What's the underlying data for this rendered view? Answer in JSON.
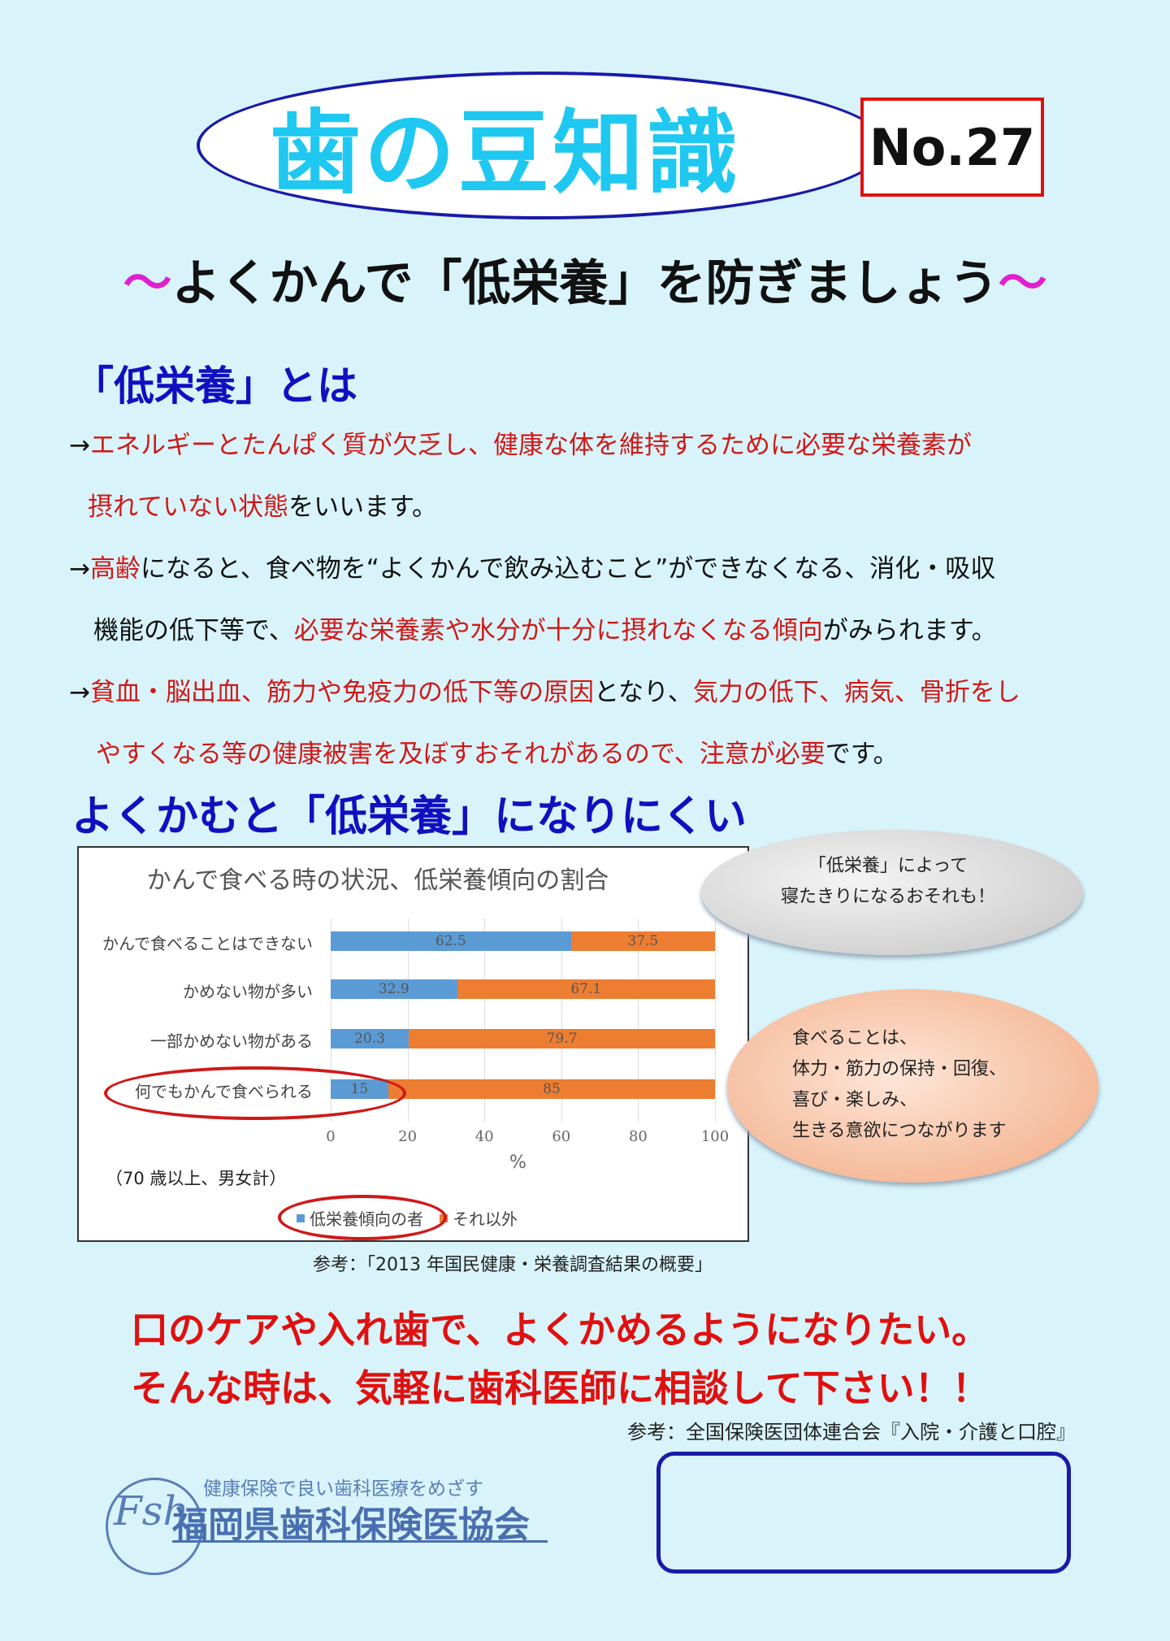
{
  "header": {
    "title": "歯の豆知識",
    "issue": "No.27"
  },
  "subtitle": {
    "tilde_left": "〜",
    "text": "よくかんで「低栄養」を防ぎましょう",
    "tilde_right": "〜"
  },
  "section1": {
    "title": "「低栄養」とは",
    "lines": [
      [
        {
          "t": "→",
          "r": false
        },
        {
          "t": "エネルギーとたんぱく質が欠乏し、健康な体を維持するために必要な栄養素が",
          "r": true
        }
      ],
      [
        {
          "t": "摂れていない状態",
          "r": true
        },
        {
          "t": "をいいます。",
          "r": false
        }
      ],
      [
        {
          "t": "→",
          "r": false
        },
        {
          "t": "高齢",
          "r": true
        },
        {
          "t": "になると、食べ物を“よくかんで飲み込むこと”ができなくなる、消化・吸収",
          "r": false
        }
      ],
      [
        {
          "t": "機能の低下等で、",
          "r": false
        },
        {
          "t": "必要な栄養素や水分が十分に摂れなくなる傾向",
          "r": true
        },
        {
          "t": "がみられます。",
          "r": false
        }
      ],
      [
        {
          "t": "→",
          "r": false
        },
        {
          "t": "貧血・脳出血、筋力や免疫力の低下等の原因",
          "r": true
        },
        {
          "t": "となり、",
          "r": false
        },
        {
          "t": "気力の低下、病気、骨折をし",
          "r": true
        }
      ],
      [
        {
          "t": "やすくなる等の健康被害を及ぼすおそれがあるので、注意が必要",
          "r": true
        },
        {
          "t": "です。",
          "r": false
        }
      ]
    ]
  },
  "section2": {
    "title": "よくかむと「低栄養」になりにくい"
  },
  "chart_data": {
    "type": "bar",
    "orientation": "horizontal-stacked",
    "title": "かんで食べる時の状況、低栄養傾向の割合",
    "categories": [
      "かんで食べることはできない",
      "かめない物が多い",
      "一部かめない物がある",
      "何でもかんで食べられる"
    ],
    "series": [
      {
        "name": "低栄養傾向の者",
        "values": [
          62.5,
          32.9,
          20.3,
          15
        ],
        "color": "#5b9bd5"
      },
      {
        "name": "それ以外",
        "values": [
          37.5,
          67.1,
          79.7,
          85
        ],
        "color": "#ed7d31"
      }
    ],
    "xlabel": "%",
    "xlim": [
      0,
      100
    ],
    "xticks": [
      "0",
      "20",
      "40",
      "60",
      "80",
      "100"
    ],
    "grid": true,
    "legend": "bottom",
    "note": "（70 歳以上、男女計）",
    "highlight_color": "#d01818"
  },
  "bubbles": {
    "gray": [
      "「低栄養」によって",
      "寝たきりになるおそれも！"
    ],
    "orange": [
      "食べることは、",
      "体力・筋力の保持・回復、",
      "喜び・楽しみ、",
      "生きる意欲につながります"
    ]
  },
  "source1": "参考：「2013 年国民健康・栄養調査結果の概要」",
  "cta": [
    "口のケアや入れ歯で、よくかめるようになりたい。",
    "そんな時は、気軽に歯科医師に相談して下さい！！"
  ],
  "source2": "参考：全国保険医団体連合会『入院・介護と口腔』",
  "footer": {
    "logo_mark": "Fsh",
    "tagline": "健康保険で良い歯科医療をめざす",
    "org": "福岡県歯科保険医協会"
  }
}
